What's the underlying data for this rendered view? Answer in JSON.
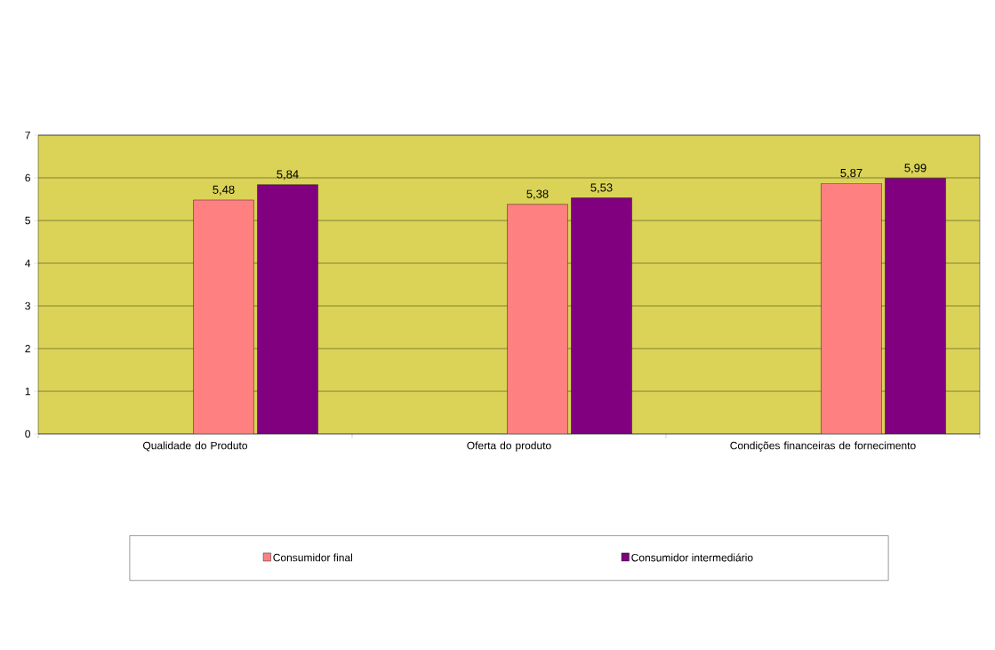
{
  "chart_data": {
    "type": "bar",
    "categories": [
      "Qualidade do Produto",
      "Oferta do produto",
      "Condições financeiras de fornecimento"
    ],
    "series": [
      {
        "name": "Consumidor final",
        "color": "#ff8080",
        "values": [
          5.48,
          5.38,
          5.87
        ],
        "value_labels": [
          "5,48",
          "5,38",
          "5,87"
        ]
      },
      {
        "name": "Consumidor intermediário",
        "color": "#800080",
        "values": [
          5.84,
          5.53,
          5.99
        ],
        "value_labels": [
          "5,84",
          "5,53",
          "5,99"
        ]
      }
    ],
    "ylim": [
      0,
      7
    ],
    "yticks": [
      0,
      1,
      2,
      3,
      4,
      5,
      6,
      7
    ],
    "grid": "y",
    "legend": "bottom"
  }
}
